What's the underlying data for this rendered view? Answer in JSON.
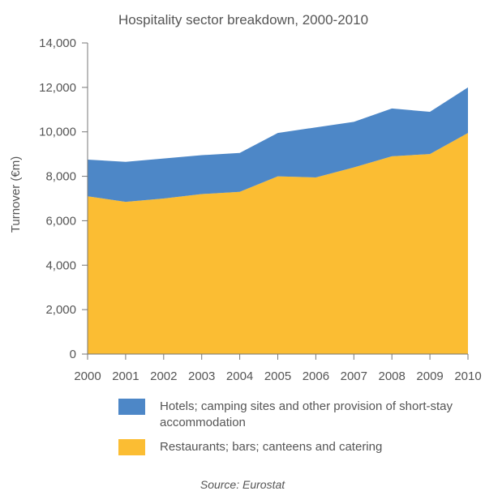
{
  "chart_data": {
    "type": "area",
    "stacked": true,
    "title": "Hospitality sector breakdown, 2000-2010",
    "ylabel": "Turnover (€m)",
    "xlabel": "",
    "x": [
      "2000",
      "2001",
      "2002",
      "2003",
      "2004",
      "2005",
      "2006",
      "2007",
      "2008",
      "2009",
      "2010"
    ],
    "ylim": [
      0,
      14000
    ],
    "yticks": [
      "0",
      "2,000",
      "4,000",
      "6,000",
      "8,000",
      "10,000",
      "12,000",
      "14,000"
    ],
    "grid": false,
    "legend_position": "bottom",
    "series": [
      {
        "name": "Restaurants; bars; canteens and catering",
        "color": "#fbbd33",
        "values": [
          7100,
          6850,
          7000,
          7200,
          7300,
          8000,
          7950,
          8400,
          8900,
          9000,
          9950
        ]
      },
      {
        "name": "Hotels; camping sites and other provision of short-stay accommodation",
        "color": "#4d87c7",
        "values": [
          1650,
          1800,
          1800,
          1750,
          1750,
          1950,
          2250,
          2050,
          2150,
          1900,
          2050
        ]
      }
    ],
    "source": "Source: Eurostat"
  }
}
